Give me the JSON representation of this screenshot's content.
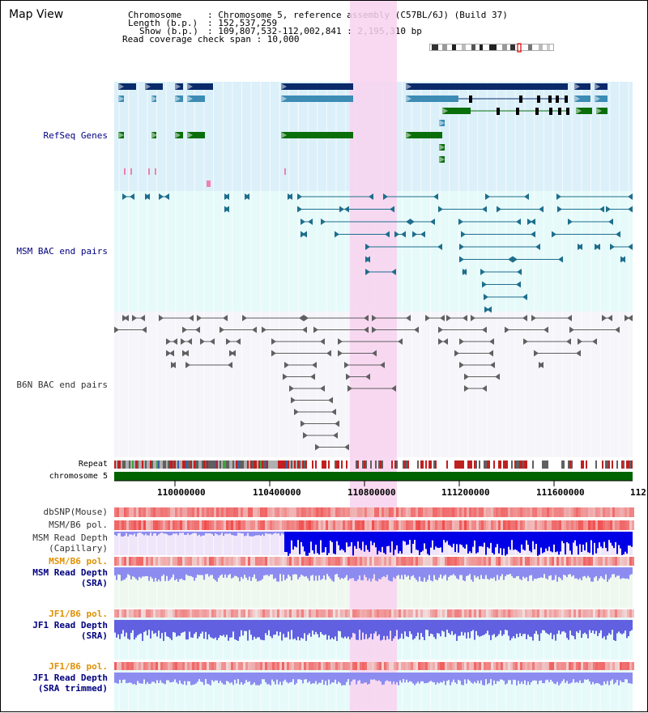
{
  "window": {
    "title": "Map View"
  },
  "info": {
    "chromosome_key": "Chromosome",
    "chromosome_val": ": Chromosome 5, reference assembly (C57BL/6J) (Build 37)",
    "length_key": "Length (b.p.)",
    "length_val": ": 152,537,259",
    "show_key": "Show (b.p.)",
    "show_val": ": 109,807,532-112,002,841 : 2,195,310 bp",
    "coverage": "Read coverage check span : 10,000"
  },
  "tracks": {
    "refseq": "RefSeq Genes",
    "msm_bac": "MSM BAC end pairs",
    "b6n_bac": "B6N BAC end pairs",
    "repeat": "Repeat",
    "chromosome": "chromosome 5",
    "dbsnp": "dbSNP(Mouse)",
    "msm_b6_pol": "MSM/B6 pol.",
    "msm_read_depth_cap_1": "MSM Read Depth",
    "msm_read_depth_cap_2": "(Capillary)",
    "msm_b6_pol_2": "MSM/B6 pol.",
    "msm_read_depth_sra_1": "MSM Read Depth",
    "msm_read_depth_sra_2": "(SRA)",
    "jf1_b6_pol": "JF1/B6 pol.",
    "jf1_read_depth_1": "JF1 Read Depth",
    "jf1_read_depth_2": "(SRA)",
    "jf1_b6_pol_2": "JF1/B6 pol.",
    "jf1_trim_1": "JF1 Read Depth",
    "jf1_trim_2": "(SRA trimmed)"
  },
  "axis": {
    "ticks": [
      "110000000",
      "110400000",
      "110800000",
      "111200000",
      "111600000",
      "112"
    ]
  },
  "colors": {
    "refseq_bg": "#dcf0fa",
    "msm_bg": "#e6fafa",
    "b6n_bg": "#f5f5fa",
    "highlight": "#f8d2ee",
    "gene_dark": "#0a2a6a",
    "gene_mid": "#3c8cb4",
    "gene_green": "#0a6e0a",
    "bac_teal": "#1e6e8c",
    "bac_grey": "#606060",
    "chrom_green": "#006400",
    "snp_red": "#e63232",
    "depth_blue": "#0000e6",
    "depth_light": "#8c8cf0"
  }
}
